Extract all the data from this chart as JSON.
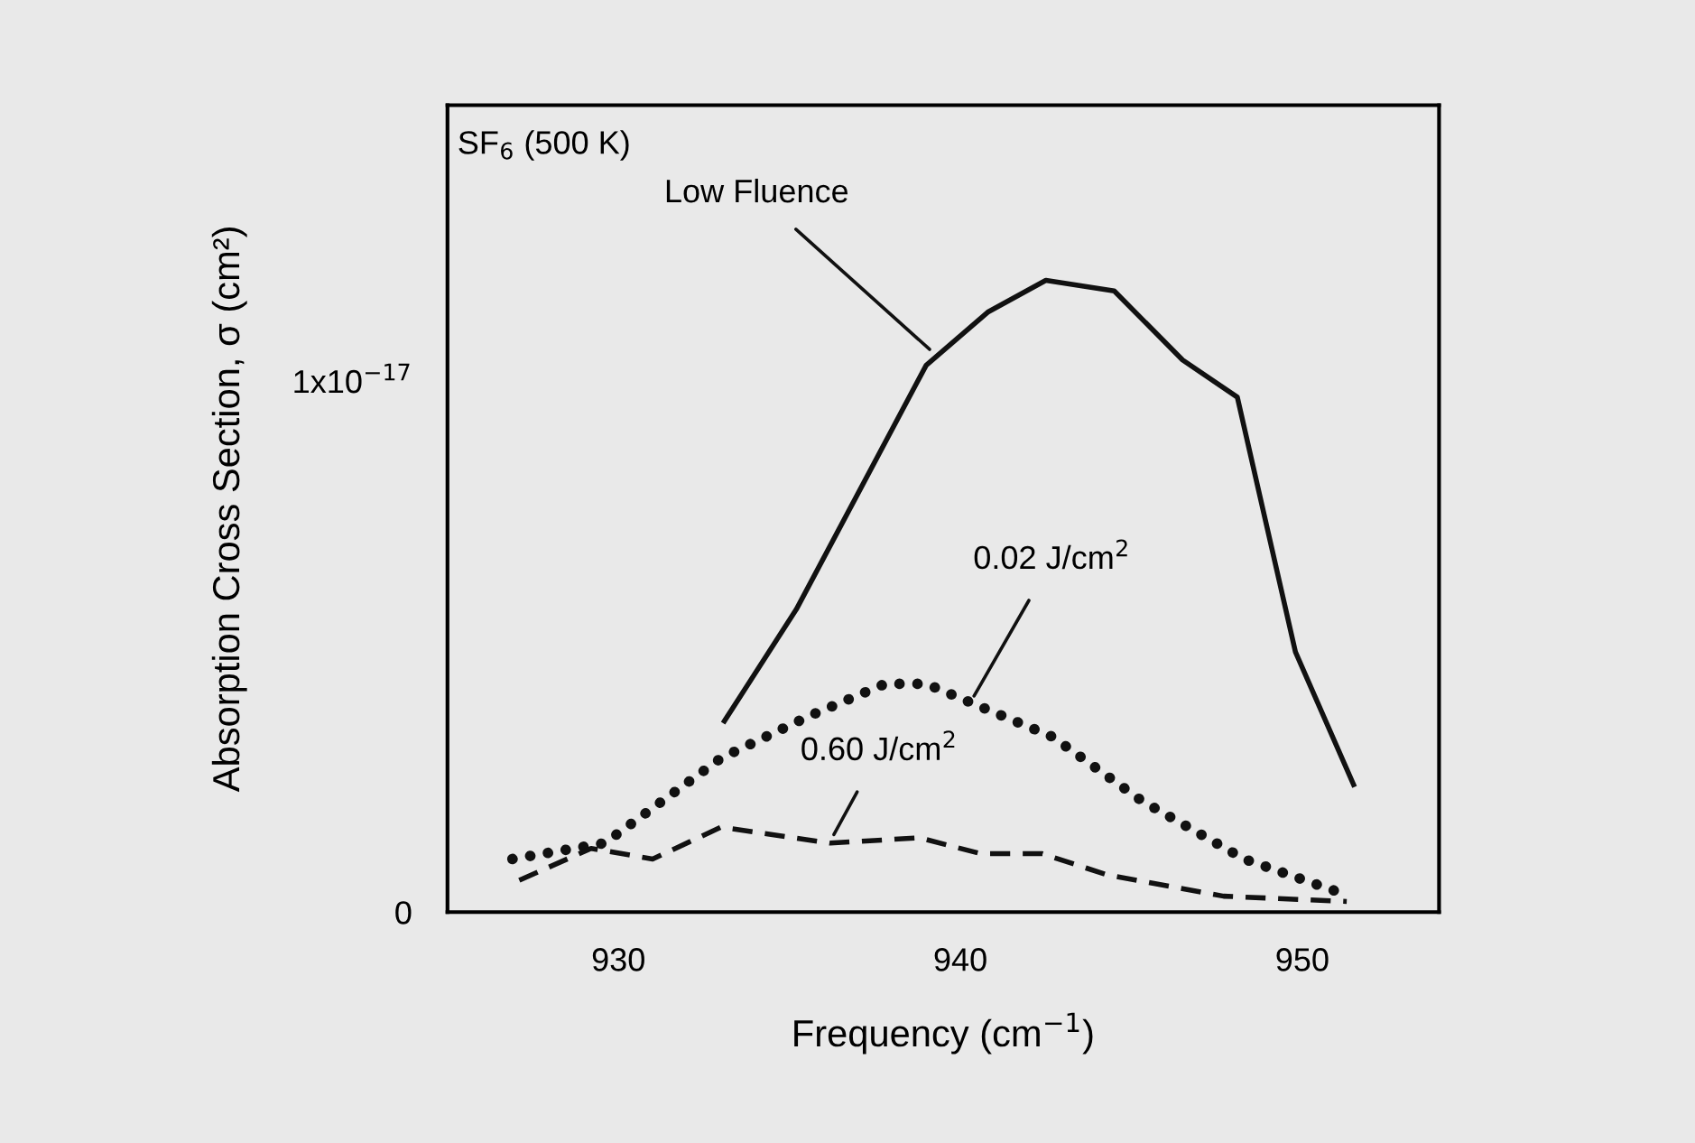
{
  "chart_data": {
    "type": "line",
    "xlabel": "Frequency (cm$^{−1}$)",
    "ylabel": "Absorption Cross Section, σ (cm²)",
    "xlim": [
      925,
      954
    ],
    "xticks": [
      930,
      940,
      950
    ],
    "ylim": [
      0,
      1.52e-17
    ],
    "yticks": [
      0,
      {
        "value": 1e-17,
        "label": "1x10$^{−17}$"
      }
    ],
    "grid": false,
    "series": [
      {
        "color": "#111111",
        "line_style": "solid",
        "x": [
          933.1,
          935.2,
          939.0,
          940.8,
          942.5,
          944.5,
          946.5,
          948.1,
          949.8,
          951.5
        ],
        "values": [
          3.6e-18,
          5.7e-18,
          1.03e-17,
          1.13e-17,
          1.19e-17,
          1.17e-17,
          1.04e-17,
          9.7e-18,
          4.9e-18,
          2.4e-18
        ]
      },
      {
        "color": "#111111",
        "line_style": "dotted",
        "x": [
          926.9,
          929.6,
          933.0,
          935.6,
          937.8,
          939.0,
          942.7,
          945.3,
          948.3,
          951.4
        ],
        "values": [
          1e-18,
          1.3e-18,
          2.9e-18,
          3.7e-18,
          4.3e-18,
          4.3e-18,
          3.3e-18,
          2.1e-18,
          1e-18,
          3e-19
        ]
      },
      {
        "color": "#111111",
        "line_style": "dashed",
        "x": [
          927.1,
          929.2,
          931.0,
          933.0,
          936.2,
          938.8,
          940.6,
          942.4,
          944.3,
          947.7,
          951.3
        ],
        "values": [
          6e-19,
          1.2e-18,
          1e-18,
          1.6e-18,
          1.3e-18,
          1.4e-18,
          1.1e-18,
          1.1e-18,
          7e-19,
          3e-19,
          2e-19
        ]
      }
    ],
    "annotations": [
      "SF$_{6}$ (500 K)",
      {
        "text": "Low Fluence",
        "x": 939.1,
        "y": 1.06e-17
      },
      {
        "text": "0.02 J/cm$^{2}$",
        "x": 940.4,
        "y": 4.07e-18
      },
      {
        "text": "0.60 J/cm$^{2}$",
        "x": 936.3,
        "y": 1.46e-18
      }
    ]
  }
}
